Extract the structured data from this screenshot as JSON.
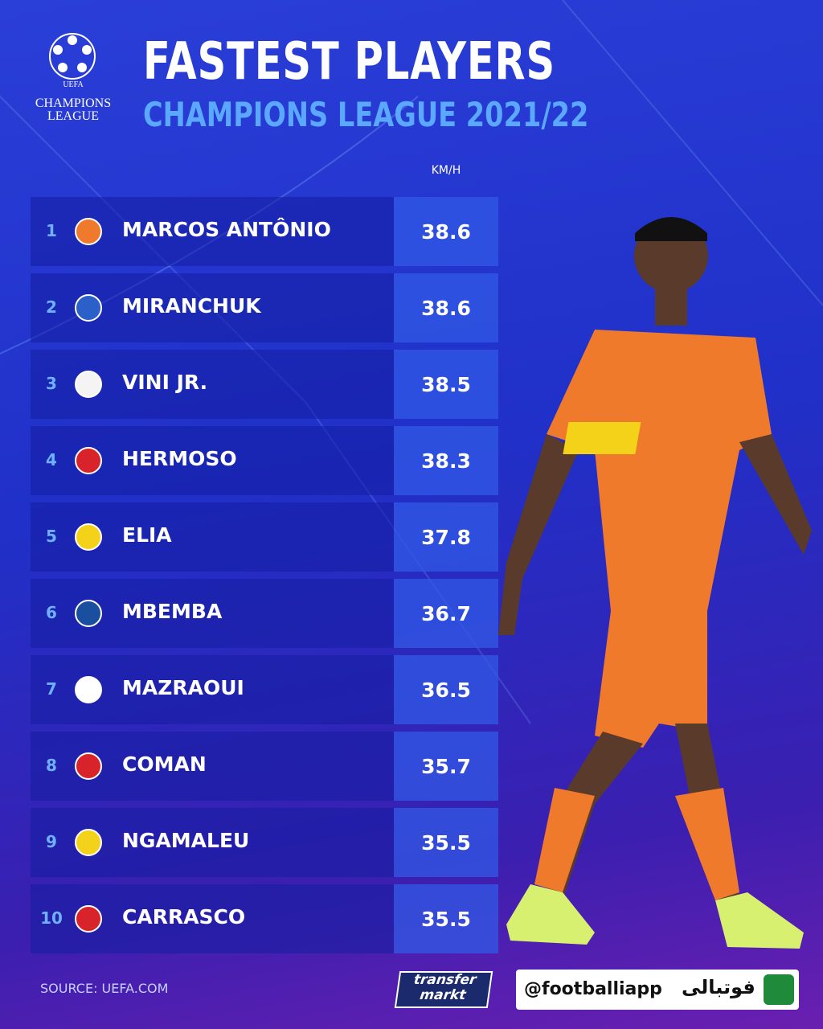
{
  "header": {
    "logo": [
      "UEFA",
      "CHAMPIONS",
      "LEAGUE"
    ],
    "title": "FASTEST PLAYERS",
    "subtitle": "CHAMPIONS LEAGUE 2021/22"
  },
  "table": {
    "unit": "KM/H",
    "rows": [
      {
        "rank": 1,
        "player": "MARCOS ANTÔNIO",
        "speed": 38.6
      },
      {
        "rank": 2,
        "player": "MIRANCHUK",
        "speed": 38.6
      },
      {
        "rank": 3,
        "player": "VINI JR.",
        "speed": 38.5
      },
      {
        "rank": 4,
        "player": "HERMOSO",
        "speed": 38.3
      },
      {
        "rank": 5,
        "player": "ELIA",
        "speed": 37.8
      },
      {
        "rank": 6,
        "player": "MBEMBA",
        "speed": 36.7
      },
      {
        "rank": 7,
        "player": "MAZRAOUI",
        "speed": 36.5
      },
      {
        "rank": 8,
        "player": "COMAN",
        "speed": 35.7
      },
      {
        "rank": 9,
        "player": "NGAMALEU",
        "speed": 35.5
      },
      {
        "rank": 10,
        "player": "CARRASCO",
        "speed": 35.5
      }
    ]
  },
  "footer": {
    "source": "SOURCE: UEFA.COM",
    "brand": [
      "transfer",
      "markt"
    ],
    "handle": "@footballiapp",
    "app_name": "فوتبالی"
  }
}
